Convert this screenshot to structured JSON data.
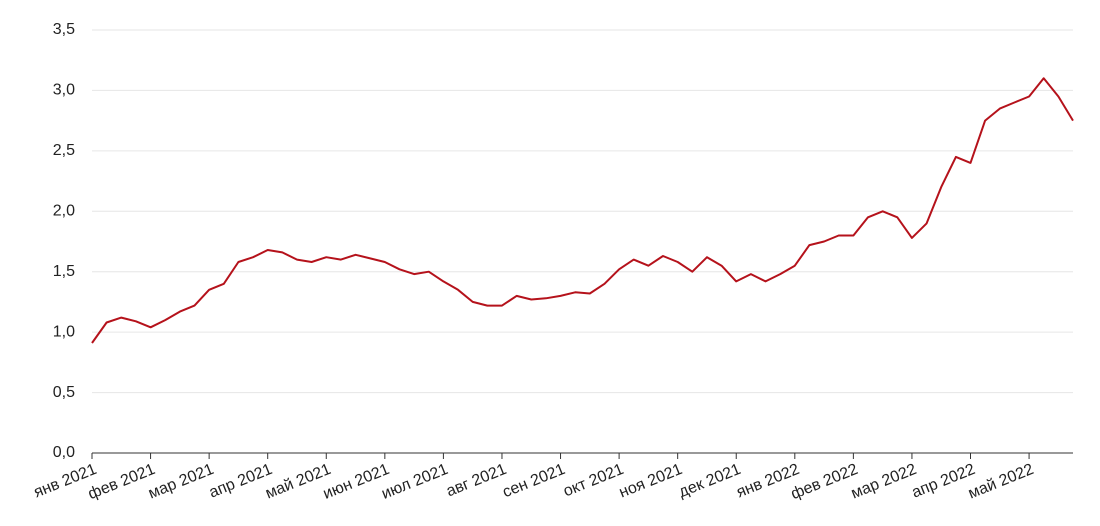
{
  "chart_data": {
    "type": "line",
    "categories": [
      "янв 2021",
      null,
      null,
      null,
      "фев 2021",
      null,
      null,
      null,
      "мар 2021",
      null,
      null,
      null,
      "апр 2021",
      null,
      null,
      null,
      "май 2021",
      null,
      null,
      null,
      "июн 2021",
      null,
      null,
      null,
      "июл 2021",
      null,
      null,
      null,
      "авг 2021",
      null,
      null,
      null,
      "сен 2021",
      null,
      null,
      null,
      "окт 2021",
      null,
      null,
      null,
      "ноя 2021",
      null,
      null,
      null,
      "дек 2021",
      null,
      null,
      null,
      "янв 2022",
      null,
      null,
      null,
      "фев 2022",
      null,
      null,
      null,
      "мар 2022",
      null,
      null,
      null,
      "апр 2022",
      null,
      null,
      null,
      "май 2022",
      null,
      null,
      null
    ],
    "series": [
      {
        "color": "#b5121b",
        "values": [
          0.91,
          1.08,
          1.12,
          1.09,
          1.04,
          1.1,
          1.17,
          1.22,
          1.35,
          1.4,
          1.58,
          1.62,
          1.68,
          1.66,
          1.6,
          1.58,
          1.62,
          1.6,
          1.64,
          1.61,
          1.58,
          1.52,
          1.48,
          1.5,
          1.42,
          1.35,
          1.25,
          1.22,
          1.22,
          1.3,
          1.27,
          1.28,
          1.3,
          1.33,
          1.32,
          1.4,
          1.52,
          1.6,
          1.55,
          1.63,
          1.58,
          1.5,
          1.62,
          1.55,
          1.42,
          1.48,
          1.42,
          1.48,
          1.55,
          1.72,
          1.75,
          1.8,
          1.8,
          1.95,
          2.0,
          1.95,
          1.78,
          1.9,
          2.2,
          2.45,
          2.4,
          2.75,
          2.85,
          2.9,
          2.95,
          3.1,
          2.95,
          2.75
        ]
      }
    ],
    "ylim": [
      0,
      3.5
    ],
    "yticks": [
      {
        "value": 0,
        "label": "0,0"
      },
      {
        "value": 0.5,
        "label": "0,5"
      },
      {
        "value": 1,
        "label": "1,0"
      },
      {
        "value": 1.5,
        "label": "1,5"
      },
      {
        "value": 2,
        "label": "2,0"
      },
      {
        "value": 2.5,
        "label": "2,5"
      },
      {
        "value": 3,
        "label": "3,0"
      },
      {
        "value": 3.5,
        "label": "3,5"
      }
    ],
    "grid": true
  }
}
